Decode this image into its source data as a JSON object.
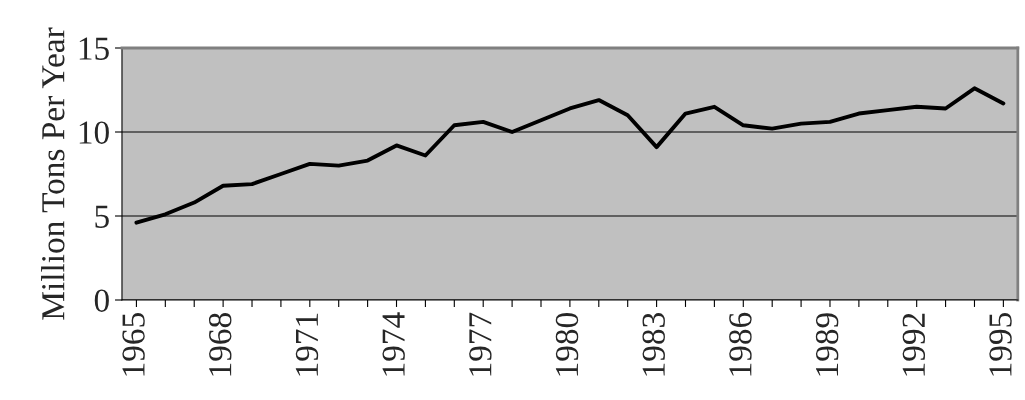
{
  "chart_data": {
    "type": "line",
    "ylabel": "Million Tons Per Year",
    "categories": [
      "1965",
      null,
      null,
      "1968",
      null,
      null,
      "1971",
      null,
      null,
      "1974",
      null,
      null,
      "1977",
      null,
      null,
      "1980",
      null,
      null,
      "1983",
      null,
      null,
      "1986",
      null,
      null,
      "1989",
      null,
      null,
      "1992",
      null,
      null,
      "1995"
    ],
    "series": [
      {
        "color": "#000000",
        "values": [
          4.6,
          5.1,
          5.8,
          6.8,
          6.9,
          7.5,
          8.1,
          8.0,
          8.3,
          9.2,
          8.6,
          10.4,
          10.6,
          10.0,
          10.7,
          11.4,
          11.9,
          11.0,
          9.1,
          11.1,
          11.5,
          10.4,
          10.2,
          10.5,
          10.6,
          11.1,
          11.3,
          11.5,
          11.4,
          12.6,
          11.7
        ]
      }
    ],
    "ylim": [
      0,
      15
    ],
    "yticks": [
      0,
      5,
      10,
      15
    ],
    "grid": "y",
    "line_style": "solid"
  }
}
